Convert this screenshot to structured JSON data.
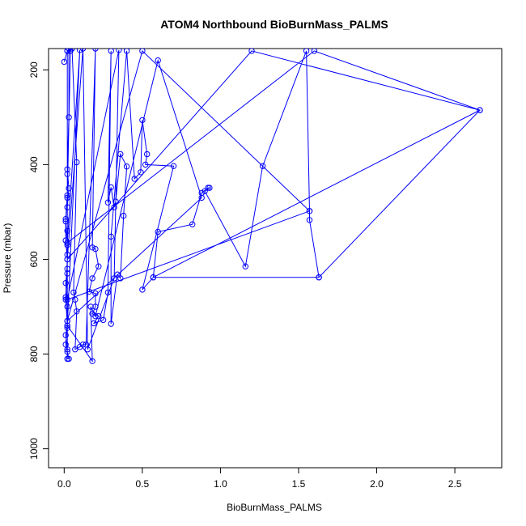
{
  "chart_data": {
    "type": "line",
    "title": "ATOM4 Northbound BioBurnMass_PALMS",
    "xlabel": "BioBurnMass_PALMS",
    "ylabel": "Pressure (mbar)",
    "xlim": [
      -0.1,
      2.8
    ],
    "ylim": [
      1040,
      155
    ],
    "y_reversed": true,
    "x_ticks": [
      0.0,
      0.5,
      1.0,
      1.5,
      2.0,
      2.5
    ],
    "x_tick_labels": [
      "0.0",
      "0.5",
      "1.0",
      "1.5",
      "2.0",
      "2.5"
    ],
    "y_ticks": [
      200,
      400,
      600,
      800,
      1000
    ],
    "y_tick_labels": [
      "200",
      "400",
      "600",
      "800",
      "1000"
    ],
    "series_color": "#0000ff",
    "marker": "open-circle",
    "grid": false,
    "legend": "none",
    "series": [
      {
        "points": [
          [
            0.0,
            183
          ],
          [
            0.02,
            160
          ],
          [
            0.02,
            420
          ],
          [
            0.02,
            465
          ],
          [
            0.01,
            515
          ],
          [
            0.01,
            560
          ],
          [
            0.02,
            600
          ],
          [
            0.01,
            680
          ],
          [
            0.02,
            740
          ],
          [
            0.01,
            760
          ],
          [
            0.02,
            790
          ],
          [
            0.02,
            810
          ],
          [
            0.03,
            810
          ],
          [
            0.01,
            780
          ],
          [
            0.02,
            730
          ],
          [
            0.01,
            685
          ],
          [
            0.02,
            630
          ],
          [
            0.02,
            590
          ],
          [
            0.02,
            540
          ],
          [
            0.02,
            490
          ],
          [
            0.03,
            450
          ],
          [
            0.02,
            410
          ],
          [
            0.03,
            300
          ],
          [
            0.03,
            155
          ],
          [
            0.04,
            160
          ],
          [
            0.02,
            470
          ],
          [
            0.01,
            520
          ],
          [
            0.02,
            570
          ],
          [
            0.02,
            620
          ],
          [
            0.01,
            650
          ],
          [
            0.02,
            700
          ],
          [
            0.02,
            745
          ],
          [
            0.02,
            795
          ],
          [
            0.02,
            160
          ],
          [
            0.05,
            155
          ],
          [
            0.08,
            395
          ],
          [
            0.06,
            670
          ],
          [
            0.07,
            685
          ],
          [
            0.08,
            710
          ],
          [
            0.07,
            790
          ],
          [
            0.1,
            785
          ],
          [
            0.12,
            780
          ],
          [
            0.14,
            780
          ],
          [
            0.2,
            155
          ],
          [
            0.18,
            575
          ],
          [
            0.2,
            578
          ],
          [
            0.22,
            615
          ],
          [
            0.18,
            640
          ],
          [
            0.16,
            668
          ],
          [
            0.2,
            672
          ],
          [
            0.2,
            700
          ],
          [
            0.18,
            715
          ],
          [
            0.22,
            720
          ],
          [
            0.19,
            735
          ],
          [
            0.25,
            728
          ],
          [
            0.28,
            670
          ],
          [
            0.3,
            160
          ],
          [
            0.28,
            480
          ],
          [
            0.3,
            448
          ],
          [
            0.32,
            490
          ],
          [
            0.33,
            478
          ],
          [
            0.36,
            378
          ],
          [
            0.4,
            404
          ],
          [
            0.38,
            508
          ],
          [
            0.36,
            640
          ],
          [
            0.34,
            632
          ],
          [
            0.3,
            736
          ],
          [
            0.3,
            552
          ],
          [
            0.4,
            160
          ],
          [
            0.45,
            430
          ],
          [
            0.49,
            416
          ],
          [
            0.5,
            306
          ],
          [
            0.53,
            378
          ],
          [
            0.52,
            400
          ],
          [
            0.7,
            403
          ],
          [
            0.5,
            664
          ],
          [
            0.57,
            638
          ],
          [
            0.6,
            542
          ],
          [
            0.82,
            526
          ],
          [
            0.88,
            460
          ],
          [
            0.92,
            449
          ],
          [
            0.93,
            449
          ],
          [
            0.9,
            456
          ],
          [
            1.16,
            615
          ],
          [
            1.27,
            403
          ],
          [
            1.55,
            160
          ],
          [
            1.57,
            498
          ],
          [
            1.57,
            517
          ],
          [
            1.63,
            638
          ],
          [
            2.66,
            285
          ],
          [
            1.6,
            160
          ],
          [
            0.02,
            565
          ],
          [
            0.1,
            158
          ],
          [
            0.02,
            740
          ],
          [
            0.18,
            815
          ],
          [
            0.17,
            700
          ],
          [
            0.2,
            720
          ],
          [
            0.6,
            180
          ],
          [
            0.88,
            470
          ],
          [
            0.02,
            730
          ],
          [
            0.5,
            160
          ],
          [
            1.57,
            498
          ],
          [
            0.02,
            685
          ],
          [
            0.35,
            158
          ],
          [
            0.32,
            640
          ],
          [
            0.15,
            790
          ],
          [
            0.12,
            155
          ],
          [
            0.02,
            600
          ],
          [
            1.2,
            160
          ],
          [
            2.66,
            285
          ],
          [
            0.57,
            638
          ],
          [
            1.63,
            638
          ]
        ]
      }
    ]
  }
}
